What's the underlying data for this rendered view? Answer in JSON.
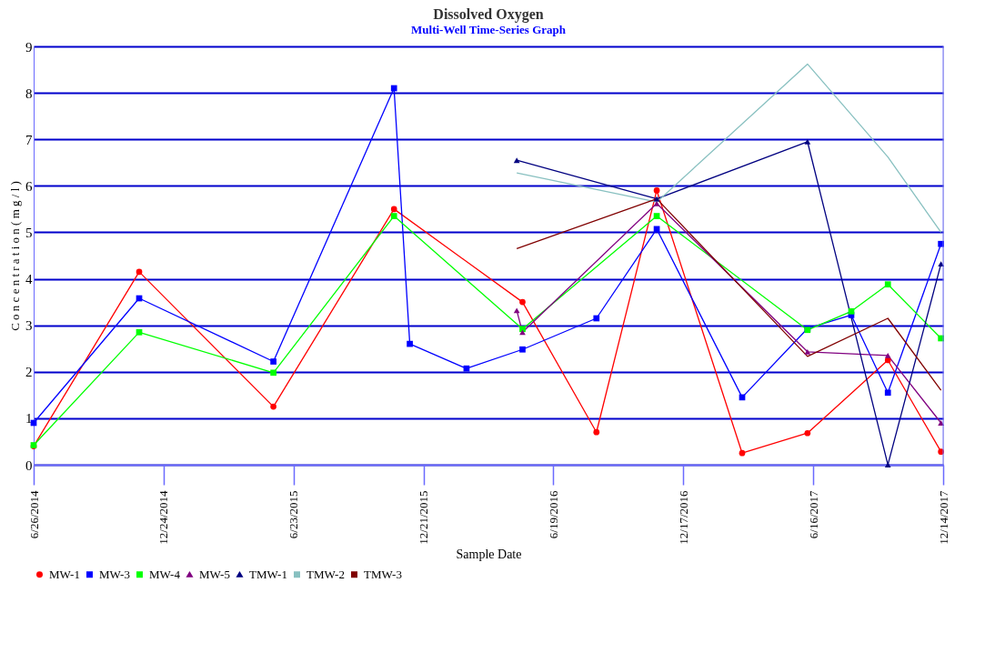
{
  "chart_data": {
    "type": "line",
    "title": "Dissolved Oxygen",
    "subtitle": "Multi-Well Time-Series Graph",
    "xlabel": "Sample Date",
    "ylabel": "C o n c e n t r a t i o n   ( m g / l )",
    "ylim": [
      0,
      9
    ],
    "yticks": [
      0,
      1,
      2,
      3,
      4,
      5,
      6,
      7,
      8,
      9
    ],
    "xlim": [
      "2014-06-26",
      "2017-12-14"
    ],
    "xticks": [
      {
        "value": "2014-06-26",
        "label": "6/26/2014"
      },
      {
        "value": "2014-12-24",
        "label": "12/24/2014"
      },
      {
        "value": "2015-06-23",
        "label": "6/23/2015"
      },
      {
        "value": "2015-12-21",
        "label": "12/21/2015"
      },
      {
        "value": "2016-06-19",
        "label": "6/19/2016"
      },
      {
        "value": "2016-12-17",
        "label": "12/17/2016"
      },
      {
        "value": "2017-06-16",
        "label": "6/16/2017"
      },
      {
        "value": "2017-12-14",
        "label": "12/14/2017"
      }
    ],
    "grid": "y",
    "legend": "bottom left",
    "series": [
      {
        "name": "MW-1",
        "color": "#ff0000",
        "marker": "circle",
        "x": [
          "2014-06-26",
          "2014-11-20",
          "2015-05-26",
          "2015-11-10",
          "2016-05-07",
          "2016-08-18",
          "2016-11-10",
          "2017-03-09",
          "2017-06-08",
          "2017-09-28",
          "2017-12-11"
        ],
        "values": [
          0.4,
          4.15,
          1.25,
          5.5,
          3.5,
          0.7,
          5.9,
          0.25,
          0.68,
          2.25,
          0.28
        ]
      },
      {
        "name": "MW-3",
        "color": "#0000ff",
        "marker": "square",
        "x": [
          "2014-06-26",
          "2014-11-20",
          "2015-05-26",
          "2015-11-10",
          "2015-12-02",
          "2016-02-19",
          "2016-05-07",
          "2016-08-18",
          "2016-11-10",
          "2017-03-09",
          "2017-06-08",
          "2017-08-08",
          "2017-09-28",
          "2017-12-11"
        ],
        "values": [
          0.9,
          3.58,
          2.22,
          8.1,
          2.6,
          2.07,
          2.48,
          3.15,
          5.07,
          1.45,
          2.93,
          3.22,
          1.55,
          4.75
        ]
      },
      {
        "name": "MW-4",
        "color": "#00ff00",
        "marker": "square",
        "x": [
          "2014-06-26",
          "2014-11-20",
          "2015-05-26",
          "2015-11-10",
          "2016-05-07",
          "2016-11-10",
          "2017-06-08",
          "2017-08-08",
          "2017-09-28",
          "2017-12-11"
        ],
        "values": [
          0.42,
          2.85,
          1.98,
          5.35,
          2.92,
          5.35,
          2.9,
          3.3,
          3.88,
          2.72
        ]
      },
      {
        "name": "MW-5",
        "color": "#800080",
        "marker": "triangle",
        "x": [
          "2016-04-29",
          "2016-05-07",
          "2016-11-10",
          "2017-06-08",
          "2017-09-28",
          "2017-12-11"
        ],
        "values": [
          3.32,
          2.85,
          5.62,
          2.43,
          2.35,
          0.9
        ]
      },
      {
        "name": "TMW-1",
        "color": "#000080",
        "marker": "triangle",
        "x": [
          "2016-04-29",
          "2016-11-10",
          "2017-06-08",
          "2017-09-28",
          "2017-12-11"
        ],
        "values": [
          6.55,
          5.72,
          6.95,
          0.0,
          4.32
        ]
      },
      {
        "name": "TMW-2",
        "color": "#88c0c0",
        "marker": "none",
        "x": [
          "2016-04-29",
          "2016-11-10",
          "2017-06-08",
          "2017-09-28",
          "2017-12-11"
        ],
        "values": [
          6.28,
          5.65,
          8.62,
          6.62,
          5.0
        ]
      },
      {
        "name": "TMW-3",
        "color": "#800000",
        "marker": "none",
        "x": [
          "2016-04-29",
          "2016-11-10",
          "2017-06-08",
          "2017-09-28",
          "2017-12-11"
        ],
        "values": [
          4.65,
          5.72,
          2.33,
          3.15,
          1.6
        ]
      }
    ]
  }
}
